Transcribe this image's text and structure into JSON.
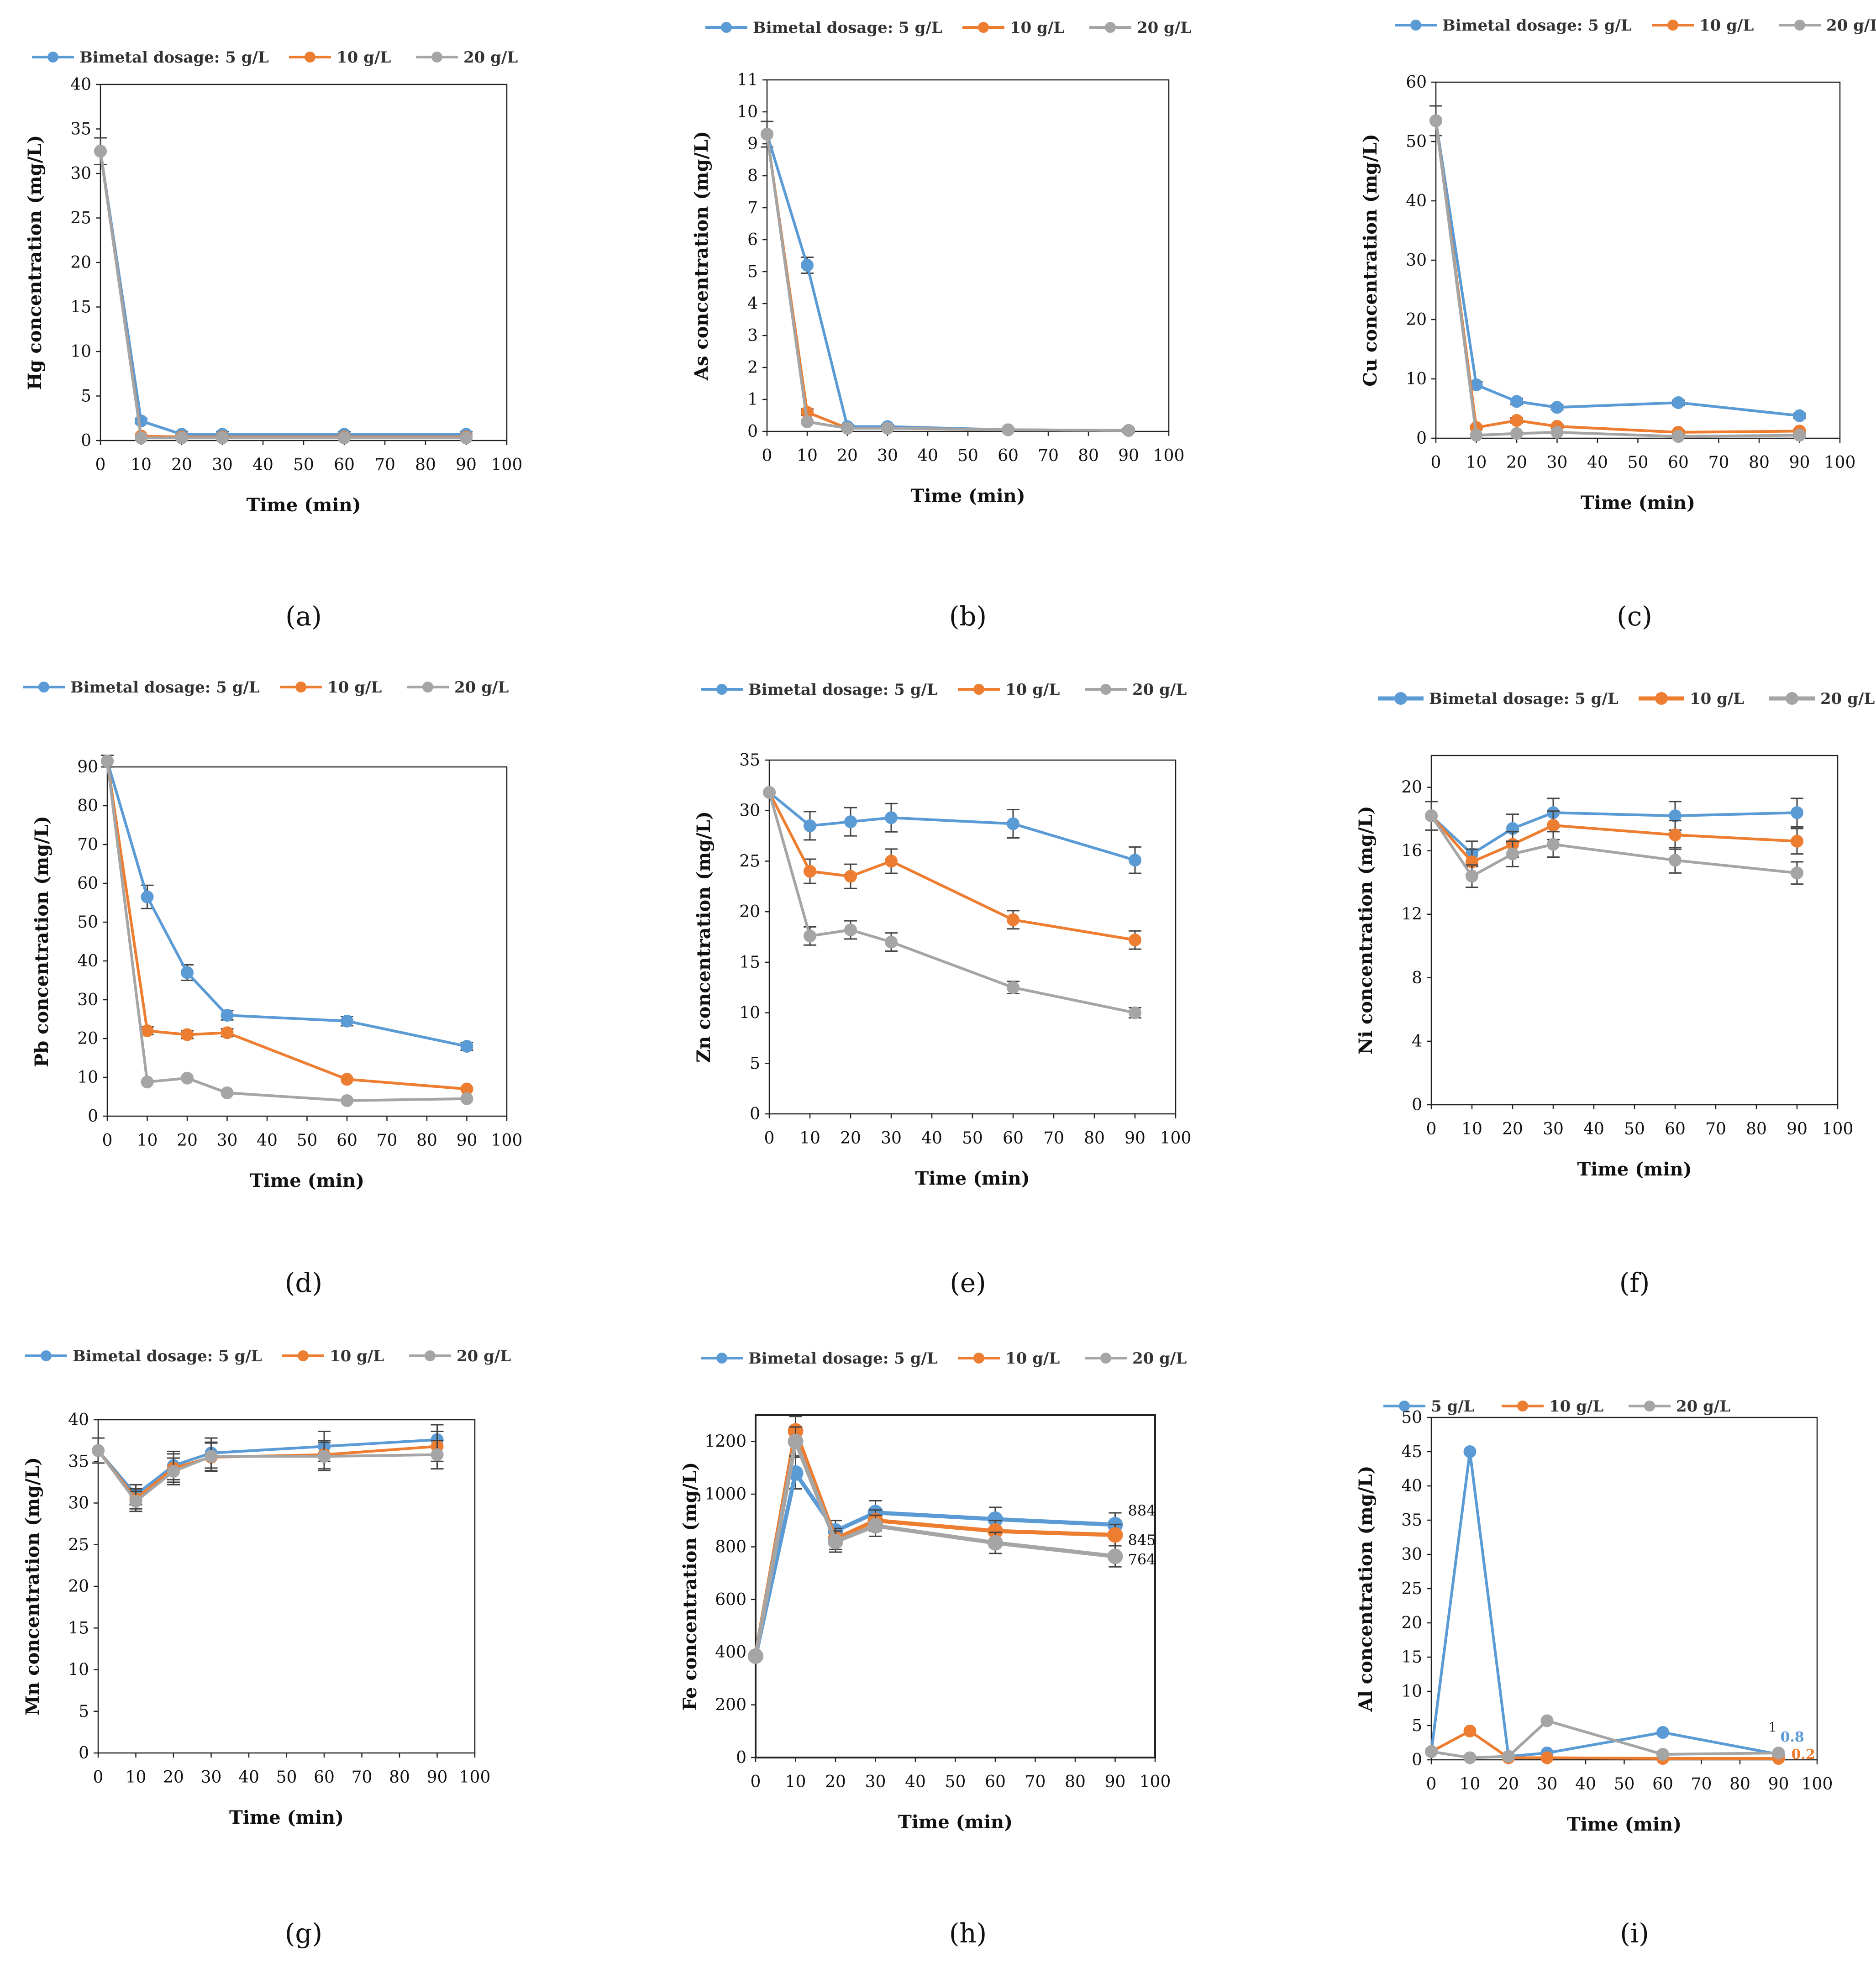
{
  "figure": {
    "x_axis_label": "Time (min)",
    "colors": {
      "s5": "#5B9BD5",
      "s10": "#ED7D31",
      "s20": "#A5A5A5"
    },
    "panels": [
      {
        "id": "a",
        "caption": "(a)"
      },
      {
        "id": "b",
        "caption": "(b)"
      },
      {
        "id": "c",
        "caption": "(c)"
      },
      {
        "id": "d",
        "caption": "(d)"
      },
      {
        "id": "e",
        "caption": "(e)"
      },
      {
        "id": "f",
        "caption": "(f)"
      },
      {
        "id": "g",
        "caption": "(g)"
      },
      {
        "id": "h",
        "caption": "(h)"
      },
      {
        "id": "i",
        "caption": "(i)"
      }
    ]
  },
  "chart_data": [
    {
      "id": "a",
      "type": "line",
      "ylabel": "Hg concentration (mg/L)",
      "xlabel": "Time (min)",
      "x": [
        0,
        10,
        20,
        30,
        60,
        90
      ],
      "xlim": [
        0,
        100
      ],
      "xticks": [
        0,
        10,
        20,
        30,
        40,
        50,
        60,
        70,
        80,
        90,
        100
      ],
      "ylim": [
        0,
        40
      ],
      "yticks": [
        0,
        5,
        10,
        15,
        20,
        25,
        30,
        35,
        40
      ],
      "legend": [
        "Bimetal dosage: 5 g/L",
        "10 g/L",
        "20 g/L"
      ],
      "series": [
        {
          "name": "Bimetal dosage: 5 g/L",
          "values": [
            32.5,
            2.2,
            0.7,
            0.7,
            0.7,
            0.7
          ],
          "err": [
            1.5,
            0.3,
            0.3,
            0.3,
            0.3,
            0.3
          ]
        },
        {
          "name": "10 g/L",
          "values": [
            32.5,
            0.5,
            0.4,
            0.4,
            0.4,
            0.4
          ],
          "err": [
            0,
            0,
            0,
            0,
            0,
            0
          ]
        },
        {
          "name": "20 g/L",
          "values": [
            32.5,
            0.3,
            0.3,
            0.3,
            0.3,
            0.3
          ],
          "err": [
            0,
            0,
            0,
            0,
            0,
            0
          ]
        }
      ]
    },
    {
      "id": "b",
      "type": "line",
      "ylabel": "As concentration (mg/L)",
      "xlabel": "Time (min)",
      "x": [
        0,
        10,
        20,
        30,
        60,
        90
      ],
      "xlim": [
        0,
        100
      ],
      "xticks": [
        0,
        10,
        20,
        30,
        40,
        50,
        60,
        70,
        80,
        90,
        100
      ],
      "ylim": [
        0,
        11
      ],
      "yticks": [
        0,
        1,
        2,
        3,
        4,
        5,
        6,
        7,
        8,
        9,
        10,
        11
      ],
      "legend": [
        "Bimetal dosage: 5 g/L",
        "10 g/L",
        "20 g/L"
      ],
      "series": [
        {
          "name": "Bimetal dosage: 5 g/L",
          "values": [
            9.3,
            5.2,
            0.15,
            0.15,
            0.05,
            0.03
          ],
          "err": [
            0.4,
            0.25,
            0.05,
            0.05,
            0.05,
            0.05
          ]
        },
        {
          "name": "10 g/L",
          "values": [
            9.3,
            0.6,
            0.1,
            0.1,
            0.05,
            0.03
          ],
          "err": [
            0,
            0.1,
            0,
            0,
            0,
            0
          ]
        },
        {
          "name": "20 g/L",
          "values": [
            9.3,
            0.3,
            0.1,
            0.1,
            0.05,
            0.03
          ],
          "err": [
            0,
            0,
            0,
            0,
            0,
            0
          ]
        }
      ]
    },
    {
      "id": "c",
      "type": "line",
      "ylabel": "Cu concentration (mg/L)",
      "xlabel": "Time (min)",
      "x": [
        0,
        10,
        20,
        30,
        60,
        90
      ],
      "xlim": [
        0,
        100
      ],
      "xticks": [
        0,
        10,
        20,
        30,
        40,
        50,
        60,
        70,
        80,
        90,
        100
      ],
      "ylim": [
        0,
        60
      ],
      "yticks": [
        0,
        10,
        20,
        30,
        40,
        50,
        60
      ],
      "legend": [
        "Bimetal dosage: 5 g/L",
        "10 g/L",
        "20 g/L"
      ],
      "series": [
        {
          "name": "Bimetal dosage: 5 g/L",
          "values": [
            53.5,
            9.0,
            6.2,
            5.2,
            6.0,
            3.8
          ],
          "err": [
            2.5,
            0.5,
            0.5,
            0.4,
            0.4,
            0.4
          ]
        },
        {
          "name": "10 g/L",
          "values": [
            53.5,
            1.8,
            3.0,
            2.0,
            1.0,
            1.2
          ],
          "err": [
            0,
            0.3,
            0.4,
            0.3,
            0.3,
            0.3
          ]
        },
        {
          "name": "20 g/L",
          "values": [
            53.5,
            0.5,
            0.8,
            1.0,
            0.3,
            0.5
          ],
          "err": [
            0,
            0,
            0,
            0,
            0,
            0
          ]
        }
      ]
    },
    {
      "id": "d",
      "type": "line",
      "ylabel": "Pb concentration (mg/L)",
      "xlabel": "Time (min)",
      "x": [
        0,
        10,
        20,
        30,
        60,
        90
      ],
      "xlim": [
        0,
        100
      ],
      "xticks": [
        0,
        10,
        20,
        30,
        40,
        50,
        60,
        70,
        80,
        90,
        100
      ],
      "ylim": [
        0,
        90
      ],
      "yticks": [
        0,
        10,
        20,
        30,
        40,
        50,
        60,
        70,
        80,
        90
      ],
      "legend": [
        "Bimetal dosage: 5 g/L",
        "10 g/L",
        "20 g/L"
      ],
      "series": [
        {
          "name": "Bimetal dosage: 5 g/L",
          "values": [
            91.5,
            56.5,
            37.0,
            26.0,
            24.5,
            18.0
          ],
          "err": [
            1.5,
            3.0,
            2.0,
            1.2,
            1.2,
            1.0
          ]
        },
        {
          "name": "10 g/L",
          "values": [
            91.5,
            22.0,
            21.0,
            21.5,
            9.5,
            7.0
          ],
          "err": [
            0,
            1.0,
            1.0,
            1.0,
            0,
            0
          ]
        },
        {
          "name": "20 g/L",
          "values": [
            91.5,
            8.8,
            9.8,
            6.0,
            4.0,
            4.5
          ],
          "err": [
            0,
            0,
            0,
            0,
            0,
            0
          ]
        }
      ]
    },
    {
      "id": "e",
      "type": "line",
      "ylabel": "Zn concentration (mg/L)",
      "xlabel": "Time (min)",
      "x": [
        0,
        10,
        20,
        30,
        60,
        90
      ],
      "xlim": [
        0,
        100
      ],
      "xticks": [
        0,
        10,
        20,
        30,
        40,
        50,
        60,
        70,
        80,
        90,
        100
      ],
      "ylim": [
        0,
        35
      ],
      "yticks": [
        0,
        5,
        10,
        15,
        20,
        25,
        30,
        35
      ],
      "legend": [
        "Bimetal dosage: 5 g/L",
        "10 g/L",
        "20 g/L"
      ],
      "series": [
        {
          "name": "Bimetal dosage: 5 g/L",
          "values": [
            31.8,
            28.5,
            28.9,
            29.3,
            28.7,
            25.1
          ],
          "err": [
            0,
            1.4,
            1.4,
            1.4,
            1.4,
            1.3
          ]
        },
        {
          "name": "10 g/L",
          "values": [
            31.8,
            24.0,
            23.5,
            25.0,
            19.2,
            17.2
          ],
          "err": [
            0,
            1.2,
            1.2,
            1.2,
            0.9,
            0.9
          ]
        },
        {
          "name": "20 g/L",
          "values": [
            31.8,
            17.6,
            18.2,
            17.0,
            12.5,
            10.0
          ],
          "err": [
            0,
            0.9,
            0.9,
            0.9,
            0.6,
            0.5
          ]
        }
      ]
    },
    {
      "id": "f",
      "type": "line",
      "ylabel": "Ni concentration (mg/L)",
      "xlabel": "Time (min)",
      "x": [
        0,
        10,
        20,
        30,
        60,
        90
      ],
      "xlim": [
        0,
        100
      ],
      "xticks": [
        0,
        10,
        20,
        30,
        40,
        50,
        60,
        70,
        80,
        90,
        100
      ],
      "ylim": [
        0,
        22
      ],
      "yticks": [
        0,
        4,
        8,
        12,
        16,
        20
      ],
      "legend": [
        "Bimetal dosage: 5 g/L",
        "10 g/L",
        "20 g/L"
      ],
      "series": [
        {
          "name": "Bimetal dosage: 5 g/L",
          "values": [
            18.2,
            15.8,
            17.4,
            18.4,
            18.2,
            18.4
          ],
          "err": [
            0.9,
            0.8,
            0.9,
            0.9,
            0.9,
            0.9
          ]
        },
        {
          "name": "10 g/L",
          "values": [
            18.2,
            15.3,
            16.4,
            17.6,
            17.0,
            16.6
          ],
          "err": [
            0,
            0.8,
            0.8,
            0.9,
            0.9,
            0.8
          ]
        },
        {
          "name": "20 g/L",
          "values": [
            18.2,
            14.4,
            15.8,
            16.4,
            15.4,
            14.6
          ],
          "err": [
            0,
            0.7,
            0.8,
            0.8,
            0.8,
            0.7
          ]
        }
      ]
    },
    {
      "id": "g",
      "type": "line",
      "ylabel": "Mn concentration (mg/L)",
      "xlabel": "Time (min)",
      "x": [
        0,
        10,
        20,
        30,
        60,
        90
      ],
      "xlim": [
        0,
        100
      ],
      "xticks": [
        0,
        10,
        20,
        30,
        40,
        50,
        60,
        70,
        80,
        90,
        100
      ],
      "ylim": [
        0,
        40
      ],
      "yticks": [
        0,
        5,
        10,
        15,
        20,
        25,
        30,
        35,
        40
      ],
      "legend": [
        "Bimetal dosage: 5 g/L",
        "10 g/L",
        "20 g/L"
      ],
      "series": [
        {
          "name": "Bimetal dosage: 5 g/L",
          "values": [
            36.3,
            31.0,
            34.5,
            36.0,
            36.8,
            37.6
          ],
          "err": [
            1.5,
            1.2,
            1.7,
            1.8,
            1.8,
            1.8
          ]
        },
        {
          "name": "10 g/L",
          "values": [
            36.3,
            30.5,
            34.2,
            35.5,
            35.8,
            36.8
          ],
          "err": [
            0,
            1.2,
            1.7,
            1.7,
            1.7,
            1.8
          ]
        },
        {
          "name": "20 g/L",
          "values": [
            36.3,
            30.2,
            33.8,
            35.6,
            35.6,
            35.8
          ],
          "err": [
            0,
            1.2,
            1.6,
            1.7,
            1.7,
            1.7
          ]
        }
      ]
    },
    {
      "id": "h",
      "type": "line",
      "ylabel": "Fe concentration (mg/L)",
      "xlabel": "Time (min)",
      "x": [
        0,
        10,
        20,
        30,
        60,
        90
      ],
      "xlim": [
        0,
        100
      ],
      "xticks": [
        0,
        10,
        20,
        30,
        40,
        50,
        60,
        70,
        80,
        90,
        100
      ],
      "ylim": [
        0,
        1300
      ],
      "yticks": [
        0,
        200,
        400,
        600,
        800,
        1000,
        1200
      ],
      "legend": [
        "Bimetal dosage: 5 g/L",
        "10 g/L",
        "20 g/L"
      ],
      "annotations": [
        "884",
        "845",
        "764"
      ],
      "series": [
        {
          "name": "Bimetal dosage: 5 g/L",
          "values": [
            385,
            1080,
            860,
            930,
            905,
            884
          ],
          "err": [
            0,
            60,
            40,
            45,
            45,
            45
          ]
        },
        {
          "name": "10 g/L",
          "values": [
            385,
            1240,
            830,
            900,
            860,
            845
          ],
          "err": [
            0,
            55,
            40,
            40,
            40,
            40
          ]
        },
        {
          "name": "20 g/L",
          "values": [
            385,
            1200,
            820,
            880,
            815,
            764
          ],
          "err": [
            0,
            55,
            40,
            40,
            40,
            40
          ]
        }
      ]
    },
    {
      "id": "i",
      "type": "line",
      "ylabel": "Al concentration (mg/L)",
      "xlabel": "Time (min)",
      "x": [
        0,
        10,
        20,
        30,
        60,
        90
      ],
      "xlim": [
        0,
        100
      ],
      "xticks": [
        0,
        10,
        20,
        30,
        40,
        50,
        60,
        70,
        80,
        90,
        100
      ],
      "ylim": [
        0,
        50
      ],
      "yticks": [
        0,
        5,
        10,
        15,
        20,
        25,
        30,
        35,
        40,
        45,
        50
      ],
      "legend": [
        "5 g/L",
        "10 g/L",
        "20 g/L"
      ],
      "annotations": [
        "1",
        "0.8",
        "0.2"
      ],
      "series": [
        {
          "name": "5 g/L",
          "values": [
            1.2,
            45.0,
            0.5,
            1.0,
            4.0,
            0.8
          ],
          "err": [
            0,
            0,
            0,
            0,
            0,
            0
          ]
        },
        {
          "name": "10 g/L",
          "values": [
            1.2,
            4.2,
            0.3,
            0.3,
            0.2,
            0.2
          ],
          "err": [
            0,
            0,
            0,
            0,
            0,
            0
          ]
        },
        {
          "name": "20 g/L",
          "values": [
            1.2,
            0.3,
            0.5,
            5.7,
            0.8,
            1.0
          ],
          "err": [
            0,
            0,
            0,
            0,
            0,
            0
          ]
        }
      ]
    }
  ]
}
